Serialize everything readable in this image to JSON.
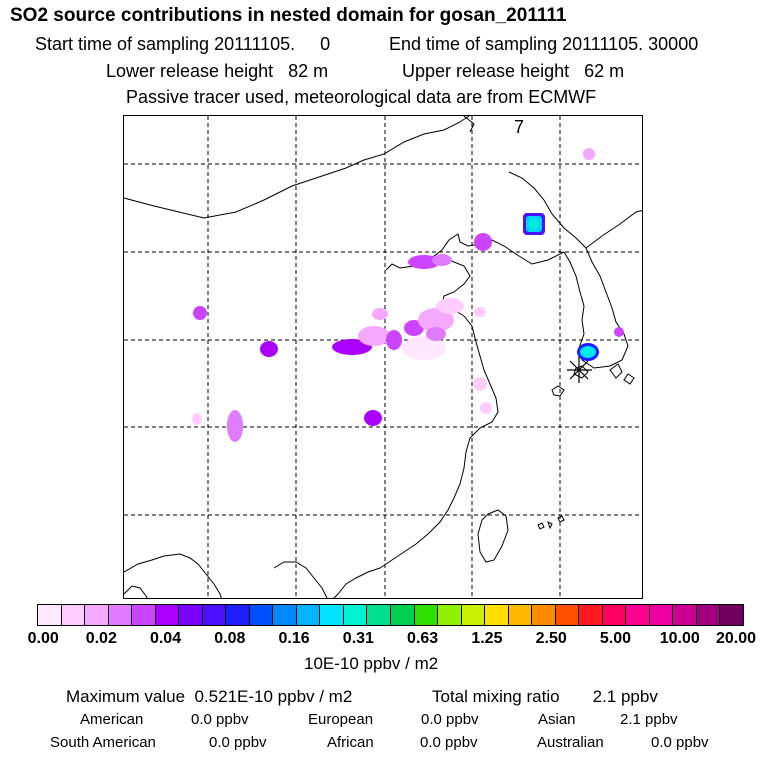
{
  "header": {
    "title": "SO2 source contributions in nested domain for gosan_201111",
    "start_sampling": "Start time of sampling 20111105.     0",
    "end_sampling": "End time of sampling 20111105. 30000",
    "lower_release": "Lower release height   82 m",
    "upper_release": "Upper release height   62 m",
    "tracer_note": "Passive tracer used, meteorological data are from ECMWF"
  },
  "map": {
    "panel_number": "7",
    "receptor_marker": "asterisk"
  },
  "colorbar": {
    "colors": [
      "#ffe8ff",
      "#ffccff",
      "#f5a8ff",
      "#e07aff",
      "#cc44ff",
      "#aa00ff",
      "#7a00ff",
      "#4a10ff",
      "#1e1eff",
      "#0050ff",
      "#0088ff",
      "#00b4ff",
      "#00e4ff",
      "#00f0d0",
      "#00e090",
      "#00d050",
      "#30e000",
      "#90f000",
      "#c8f000",
      "#ffe000",
      "#ffb800",
      "#ff8c00",
      "#ff5000",
      "#ff1820",
      "#ff0060",
      "#ff0090",
      "#ee00a0",
      "#cc0090",
      "#a00080",
      "#700060"
    ],
    "tick_labels": [
      "0.00",
      "0.02",
      "0.04",
      "0.08",
      "0.16",
      "0.31",
      "0.63",
      "1.25",
      "2.50",
      "5.00",
      "10.00",
      "20.00"
    ],
    "units": "10E-10 ppbv / m2"
  },
  "summary": {
    "maximum": "Maximum value  0.521E-10 ppbv / m2",
    "total": "Total mixing ratio       2.1 ppbv",
    "regions": [
      {
        "name": "American",
        "value": "0.0 ppbv"
      },
      {
        "name": "European",
        "value": "0.0 ppbv"
      },
      {
        "name": "Asian",
        "value": "2.1 ppbv"
      },
      {
        "name": "South American",
        "value": "0.0 ppbv"
      },
      {
        "name": "African",
        "value": "0.0 ppbv"
      },
      {
        "name": "Australian",
        "value": "0.0 ppbv"
      }
    ]
  }
}
